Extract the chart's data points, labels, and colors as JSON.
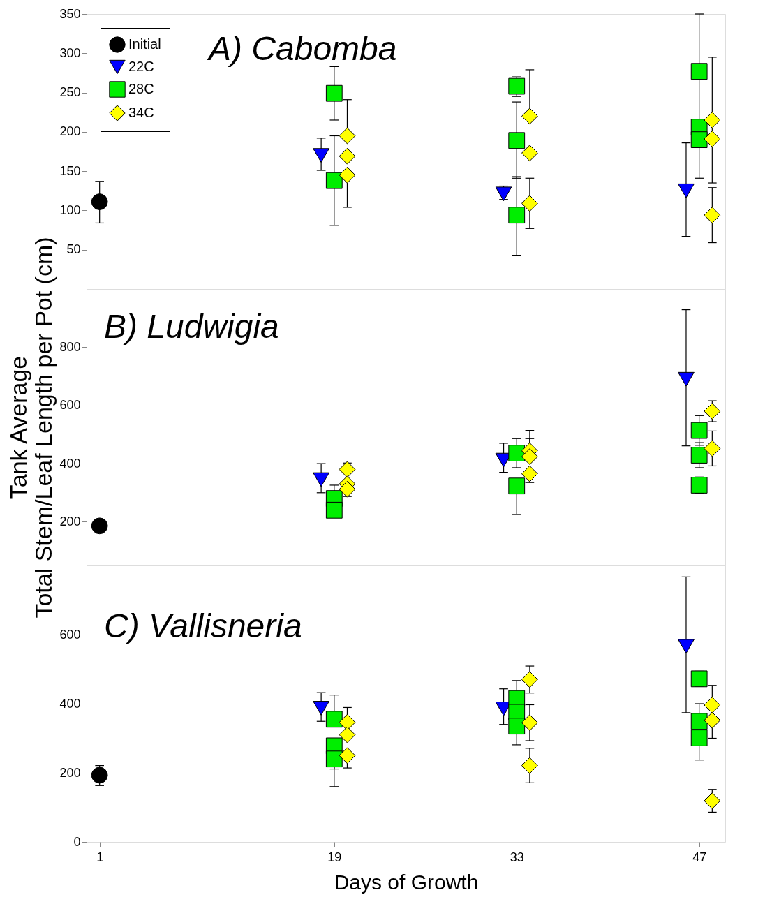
{
  "chart_data": [
    {
      "type": "scatter",
      "title": "A) Cabomba",
      "xlim": [
        0,
        49
      ],
      "xticks": [
        1,
        19,
        33,
        47
      ],
      "ylim": [
        0,
        350
      ],
      "yticks": [
        50,
        100,
        150,
        200,
        250,
        300,
        350
      ],
      "tick_labels": "y",
      "grid": false,
      "legend": "top left",
      "series": [
        {
          "name": "Initial",
          "color": "#000000",
          "marker": "circle",
          "x": [
            1
          ],
          "values": [
            111
          ],
          "errors": [
            [
              84,
              137
            ]
          ]
        },
        {
          "name": "22C",
          "color": "#0000ff",
          "marker": "triangle",
          "x": [
            18,
            32,
            46
          ],
          "values": [
            170,
            121,
            125
          ],
          "errors": [
            [
              151,
              192
            ],
            [
              114,
              131
            ],
            [
              67,
              186
            ]
          ]
        },
        {
          "name": "28C",
          "color": "#00ee00",
          "marker": "square",
          "x": [
            19,
            19,
            33,
            33,
            33,
            47,
            47,
            47
          ],
          "values": [
            249,
            138,
            258,
            189,
            94,
            277,
            206,
            190
          ],
          "errors": [
            [
              215,
              283
            ],
            [
              81,
              195
            ],
            [
              245,
              270
            ],
            [
              141,
              238
            ],
            [
              43,
              143
            ],
            [
              141,
              350
            ],
            null,
            null
          ]
        },
        {
          "name": "34C",
          "color": "#ffff00",
          "marker": "diamond",
          "x": [
            20,
            20,
            20,
            34,
            34,
            34,
            48,
            48,
            48
          ],
          "values": [
            195,
            169,
            145,
            220,
            173,
            109,
            215,
            191,
            94
          ],
          "errors": [
            [
              195,
              241
            ],
            null,
            [
              104,
              145
            ],
            [
              220,
              279
            ],
            null,
            [
              77,
              141
            ],
            [
              135,
              295
            ],
            null,
            [
              59,
              129
            ]
          ]
        }
      ]
    },
    {
      "type": "scatter",
      "title": "B) Ludwigia",
      "ylabel": "Tank Average\nTotal Stem/Leaf Length per Pot (cm)",
      "xlim": [
        0,
        49
      ],
      "xticks": [
        1,
        19,
        33,
        47
      ],
      "ylim": [
        50,
        1000
      ],
      "yticks": [
        200,
        400,
        600,
        800
      ],
      "tick_labels": "y",
      "grid": false,
      "series": [
        {
          "color": "#000000",
          "marker": "circle",
          "x": [
            1
          ],
          "values": [
            186
          ],
          "errors": [
            null
          ]
        },
        {
          "color": "#0000ff",
          "marker": "triangle",
          "x": [
            18,
            32,
            46
          ],
          "values": [
            345,
            412,
            690
          ],
          "errors": [
            [
              300,
              400
            ],
            [
              370,
              470
            ],
            [
              461,
              929
            ]
          ]
        },
        {
          "color": "#00ee00",
          "marker": "square",
          "x": [
            19,
            19,
            33,
            33,
            47,
            47,
            47
          ],
          "values": [
            280,
            240,
            436,
            323,
            514,
            429,
            326
          ],
          "errors": [
            [
              280,
              326
            ],
            null,
            [
              386,
              486
            ],
            [
              225,
              323
            ],
            [
              463,
              565
            ],
            [
              386,
              472
            ],
            [
              298,
              354
            ]
          ]
        },
        {
          "color": "#ffff00",
          "marker": "diamond",
          "x": [
            20,
            20,
            20,
            34,
            34,
            34,
            48,
            48
          ],
          "values": [
            380,
            330,
            312,
            444,
            424,
            365,
            580,
            452
          ],
          "errors": [
            [
              380,
              402
            ],
            null,
            [
              287,
              312
            ],
            [
              444,
              514
            ],
            [
              424,
              486
            ],
            [
              335,
              365
            ],
            [
              544,
              616
            ],
            [
              392,
              512
            ]
          ]
        }
      ]
    },
    {
      "type": "scatter",
      "title": "C) Vallisneria",
      "xlabel": "Days of Growth",
      "xlim": [
        0,
        49
      ],
      "xticks": [
        1,
        19,
        33,
        47
      ],
      "ylim": [
        0,
        800
      ],
      "yticks": [
        0,
        200,
        400,
        600
      ],
      "grid": false,
      "series": [
        {
          "color": "#000000",
          "marker": "circle",
          "x": [
            1
          ],
          "values": [
            193
          ],
          "errors": [
            [
              163,
              221
            ]
          ]
        },
        {
          "color": "#0000ff",
          "marker": "triangle",
          "x": [
            18,
            32,
            46
          ],
          "values": [
            387,
            385,
            566
          ],
          "errors": [
            [
              349,
              432
            ],
            [
              340,
              443
            ],
            [
              374,
              767
            ]
          ]
        },
        {
          "color": "#00ee00",
          "marker": "square",
          "x": [
            19,
            19,
            19,
            33,
            33,
            33,
            47,
            47,
            47
          ],
          "values": [
            355,
            278,
            240,
            415,
            375,
            335,
            472,
            349,
            301
          ],
          "errors": [
            [
              355,
              425
            ],
            [
              211,
              278
            ],
            [
              160,
              240
            ],
            [
              415,
              467
            ],
            null,
            [
              281,
              335
            ],
            [
              450,
              494
            ],
            [
              349,
              400
            ],
            [
              237,
              301
            ]
          ]
        },
        {
          "color": "#ffff00",
          "marker": "diamond",
          "x": [
            20,
            20,
            20,
            34,
            34,
            34,
            48,
            48,
            48
          ],
          "values": [
            346,
            310,
            250,
            470,
            345,
            221,
            396,
            352,
            119
          ],
          "errors": [
            [
              346,
              389
            ],
            null,
            [
              214,
              250
            ],
            [
              431,
              509
            ],
            [
              293,
              397
            ],
            [
              171,
              271
            ],
            [
              396,
              453
            ],
            [
              300,
              352
            ],
            [
              86,
              152
            ]
          ]
        }
      ]
    }
  ]
}
